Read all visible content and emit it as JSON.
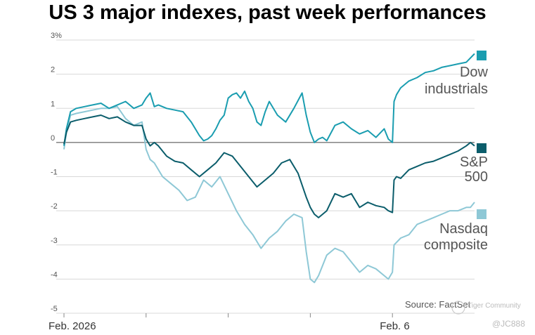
{
  "chart_data": {
    "type": "line",
    "title": "US 3 major indexes, past week performances",
    "xlabel": "",
    "ylabel": "",
    "ylim": [
      -5,
      3
    ],
    "y_ticks": [
      "3%",
      "2",
      "1",
      "0",
      "-1",
      "-2",
      "-3",
      "-4",
      "-5"
    ],
    "x_ticks": [
      "Feb. 2026",
      "Feb. 6"
    ],
    "grid": true,
    "legend": "end-of-line labels",
    "source": "Source: FactSet",
    "series": [
      {
        "name": "Dow industrials",
        "label_lines": [
          "Dow",
          "industrials"
        ],
        "color": "#1a9db0",
        "x": [
          0,
          0.03,
          0.08,
          0.15,
          0.25,
          0.35,
          0.45,
          0.55,
          0.65,
          0.75,
          0.85,
          0.95,
          1.0,
          1.05,
          1.1,
          1.15,
          1.25,
          1.35,
          1.45,
          1.55,
          1.65,
          1.7,
          1.75,
          1.8,
          1.85,
          1.9,
          1.95,
          2.0,
          2.05,
          2.1,
          2.15,
          2.2,
          2.25,
          2.3,
          2.35,
          2.4,
          2.45,
          2.5,
          2.6,
          2.7,
          2.8,
          2.9,
          2.95,
          3.0,
          3.05,
          3.1,
          3.15,
          3.2,
          3.3,
          3.4,
          3.5,
          3.6,
          3.7,
          3.8,
          3.9,
          3.95,
          4.0,
          4.02,
          4.05,
          4.1,
          4.2,
          4.3,
          4.4,
          4.5,
          4.6,
          4.7,
          4.8,
          4.9,
          5.0
        ],
        "values": [
          -0.1,
          0.4,
          0.9,
          1.0,
          1.05,
          1.1,
          1.15,
          1.0,
          1.1,
          1.2,
          1.0,
          1.1,
          1.3,
          1.45,
          1.05,
          1.1,
          1.0,
          0.95,
          0.9,
          0.6,
          0.2,
          0.05,
          0.1,
          0.2,
          0.4,
          0.65,
          0.8,
          1.3,
          1.4,
          1.45,
          1.3,
          1.5,
          1.2,
          1.0,
          0.6,
          0.5,
          0.9,
          1.2,
          0.8,
          0.6,
          1.0,
          1.45,
          0.8,
          0.3,
          0.0,
          0.1,
          0.15,
          0.05,
          0.5,
          0.6,
          0.4,
          0.25,
          0.35,
          0.15,
          0.4,
          0.1,
          0.0,
          1.2,
          1.4,
          1.6,
          1.8,
          1.9,
          2.05,
          2.1,
          2.2,
          2.25,
          2.3,
          2.35,
          2.6
        ]
      },
      {
        "name": "S&P 500",
        "label_lines": [
          "S&P",
          "500"
        ],
        "color": "#0b5d6b",
        "x": [
          0,
          0.03,
          0.08,
          0.15,
          0.25,
          0.35,
          0.45,
          0.55,
          0.65,
          0.75,
          0.85,
          0.95,
          1.0,
          1.05,
          1.1,
          1.15,
          1.25,
          1.35,
          1.45,
          1.55,
          1.65,
          1.75,
          1.85,
          1.95,
          2.05,
          2.15,
          2.25,
          2.35,
          2.45,
          2.55,
          2.65,
          2.75,
          2.85,
          2.95,
          3.0,
          3.05,
          3.1,
          3.2,
          3.3,
          3.4,
          3.5,
          3.6,
          3.7,
          3.8,
          3.9,
          3.95,
          4.0,
          4.02,
          4.05,
          4.1,
          4.2,
          4.3,
          4.4,
          4.5,
          4.6,
          4.7,
          4.8,
          4.9,
          4.95,
          5.0
        ],
        "values": [
          -0.05,
          0.3,
          0.6,
          0.65,
          0.7,
          0.75,
          0.8,
          0.7,
          0.75,
          0.6,
          0.5,
          0.5,
          0.1,
          -0.1,
          0.0,
          -0.1,
          -0.4,
          -0.55,
          -0.6,
          -0.8,
          -1.0,
          -0.8,
          -0.6,
          -0.3,
          -0.4,
          -0.7,
          -1.0,
          -1.3,
          -1.1,
          -0.9,
          -0.6,
          -0.5,
          -0.9,
          -1.6,
          -1.9,
          -2.1,
          -2.2,
          -2.0,
          -1.5,
          -1.6,
          -1.5,
          -1.9,
          -1.75,
          -1.85,
          -1.9,
          -2.0,
          -2.05,
          -1.1,
          -1.0,
          -1.05,
          -0.8,
          -0.7,
          -0.6,
          -0.55,
          -0.45,
          -0.35,
          -0.25,
          -0.1,
          0.0,
          -0.1
        ]
      },
      {
        "name": "Nasdaq composite",
        "label_lines": [
          "Nasdaq",
          "composite"
        ],
        "color": "#8ec8d6",
        "x": [
          0,
          0.03,
          0.08,
          0.15,
          0.25,
          0.35,
          0.45,
          0.55,
          0.65,
          0.75,
          0.85,
          0.95,
          1.0,
          1.05,
          1.1,
          1.2,
          1.3,
          1.4,
          1.5,
          1.6,
          1.7,
          1.8,
          1.9,
          2.0,
          2.1,
          2.2,
          2.3,
          2.4,
          2.5,
          2.6,
          2.7,
          2.8,
          2.9,
          2.95,
          3.0,
          3.05,
          3.1,
          3.2,
          3.3,
          3.4,
          3.5,
          3.6,
          3.7,
          3.8,
          3.9,
          3.95,
          4.0,
          4.02,
          4.1,
          4.2,
          4.3,
          4.4,
          4.5,
          4.6,
          4.7,
          4.8,
          4.9,
          4.95,
          5.0
        ],
        "values": [
          -0.2,
          0.3,
          0.8,
          0.85,
          0.9,
          0.95,
          1.0,
          1.0,
          1.05,
          0.7,
          0.5,
          0.6,
          -0.2,
          -0.5,
          -0.6,
          -1.0,
          -1.2,
          -1.4,
          -1.7,
          -1.6,
          -1.1,
          -1.3,
          -1.0,
          -1.5,
          -2.0,
          -2.4,
          -2.7,
          -3.1,
          -2.8,
          -2.6,
          -2.3,
          -2.1,
          -2.2,
          -3.2,
          -4.0,
          -4.1,
          -3.9,
          -3.3,
          -3.1,
          -3.2,
          -3.5,
          -3.8,
          -3.6,
          -3.7,
          -3.9,
          -4.0,
          -3.8,
          -3.0,
          -2.8,
          -2.7,
          -2.4,
          -2.3,
          -2.2,
          -2.1,
          -2.0,
          -2.0,
          -1.9,
          -1.9,
          -1.75
        ]
      }
    ]
  },
  "watermark": {
    "community": "Tiger Community",
    "handle": "@JC888"
  }
}
